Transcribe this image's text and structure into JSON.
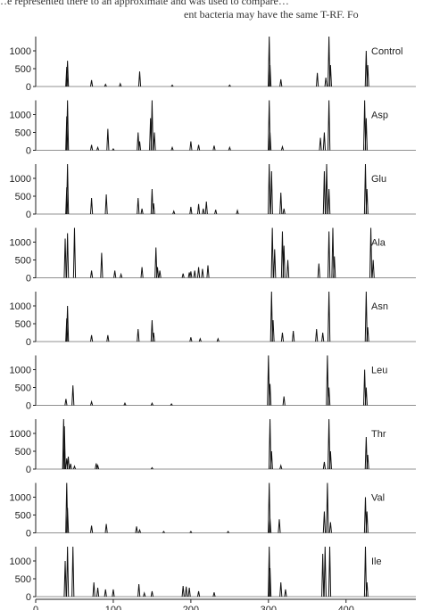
{
  "caption": {
    "line1": "…e represented there to an approximate and was used to compare…",
    "line2": "ent bacteria may have the same T-RF. Fo"
  },
  "chart_data": {
    "type": "line",
    "title": "",
    "xlabel": "",
    "ylabel": "",
    "xlim": [
      0,
      490
    ],
    "x_ticks": [
      0,
      100,
      200,
      300,
      400
    ],
    "y_ticks": [
      0,
      500,
      1000
    ],
    "ylim": [
      0,
      1400
    ],
    "panels": [
      {
        "name": "Control",
        "peaks": [
          [
            40,
            550
          ],
          [
            41,
            720
          ],
          [
            72,
            180
          ],
          [
            90,
            60
          ],
          [
            109,
            80
          ],
          [
            134,
            420
          ],
          [
            176,
            40
          ],
          [
            250,
            40
          ],
          [
            301,
            1400
          ],
          [
            302,
            600
          ],
          [
            316,
            200
          ],
          [
            363,
            380
          ],
          [
            374,
            250
          ],
          [
            378,
            1400
          ],
          [
            380,
            600
          ],
          [
            426,
            1000
          ],
          [
            428,
            600
          ]
        ]
      },
      {
        "name": "Asp",
        "peaks": [
          [
            40,
            950
          ],
          [
            41,
            1400
          ],
          [
            72,
            150
          ],
          [
            80,
            80
          ],
          [
            93,
            600
          ],
          [
            100,
            40
          ],
          [
            132,
            500
          ],
          [
            134,
            250
          ],
          [
            148,
            900
          ],
          [
            150,
            1400
          ],
          [
            153,
            500
          ],
          [
            176,
            80
          ],
          [
            200,
            250
          ],
          [
            210,
            150
          ],
          [
            230,
            130
          ],
          [
            250,
            80
          ],
          [
            301,
            1400
          ],
          [
            302,
            500
          ],
          [
            318,
            100
          ],
          [
            367,
            350
          ],
          [
            372,
            500
          ],
          [
            378,
            1400
          ],
          [
            424,
            1400
          ],
          [
            426,
            900
          ]
        ]
      },
      {
        "name": "Glu",
        "peaks": [
          [
            40,
            750
          ],
          [
            41,
            1400
          ],
          [
            72,
            450
          ],
          [
            91,
            550
          ],
          [
            132,
            450
          ],
          [
            137,
            150
          ],
          [
            150,
            700
          ],
          [
            152,
            300
          ],
          [
            178,
            80
          ],
          [
            200,
            200
          ],
          [
            210,
            280
          ],
          [
            216,
            150
          ],
          [
            220,
            350
          ],
          [
            232,
            120
          ],
          [
            260,
            100
          ],
          [
            301,
            1400
          ],
          [
            304,
            1200
          ],
          [
            316,
            600
          ],
          [
            320,
            150
          ],
          [
            372,
            1200
          ],
          [
            375,
            1400
          ],
          [
            378,
            700
          ],
          [
            425,
            1400
          ],
          [
            427,
            700
          ]
        ]
      },
      {
        "name": "Ala",
        "peaks": [
          [
            38,
            1100
          ],
          [
            41,
            1250
          ],
          [
            50,
            1400
          ],
          [
            72,
            200
          ],
          [
            85,
            700
          ],
          [
            102,
            200
          ],
          [
            110,
            100
          ],
          [
            137,
            300
          ],
          [
            155,
            850
          ],
          [
            157,
            300
          ],
          [
            160,
            200
          ],
          [
            190,
            120
          ],
          [
            198,
            150
          ],
          [
            200,
            180
          ],
          [
            205,
            200
          ],
          [
            210,
            300
          ],
          [
            215,
            250
          ],
          [
            222,
            350
          ],
          [
            305,
            1400
          ],
          [
            308,
            800
          ],
          [
            318,
            1300
          ],
          [
            320,
            900
          ],
          [
            325,
            500
          ],
          [
            365,
            400
          ],
          [
            378,
            1300
          ],
          [
            383,
            1400
          ],
          [
            385,
            600
          ],
          [
            432,
            1400
          ],
          [
            435,
            500
          ]
        ]
      },
      {
        "name": "Asn",
        "peaks": [
          [
            40,
            650
          ],
          [
            41,
            1000
          ],
          [
            72,
            180
          ],
          [
            93,
            180
          ],
          [
            132,
            350
          ],
          [
            150,
            600
          ],
          [
            152,
            250
          ],
          [
            200,
            120
          ],
          [
            212,
            80
          ],
          [
            235,
            80
          ],
          [
            304,
            1400
          ],
          [
            306,
            600
          ],
          [
            318,
            250
          ],
          [
            332,
            300
          ],
          [
            362,
            350
          ],
          [
            370,
            250
          ],
          [
            378,
            1400
          ],
          [
            426,
            1400
          ],
          [
            428,
            400
          ]
        ]
      },
      {
        "name": "Leu",
        "peaks": [
          [
            39,
            180
          ],
          [
            48,
            560
          ],
          [
            72,
            100
          ],
          [
            115,
            60
          ],
          [
            150,
            60
          ],
          [
            175,
            40
          ],
          [
            300,
            1400
          ],
          [
            302,
            600
          ],
          [
            320,
            250
          ],
          [
            376,
            1400
          ],
          [
            378,
            500
          ],
          [
            424,
            1000
          ],
          [
            426,
            500
          ]
        ]
      },
      {
        "name": "Thr",
        "peaks": [
          [
            36,
            1400
          ],
          [
            37,
            1200
          ],
          [
            40,
            300
          ],
          [
            42,
            350
          ],
          [
            45,
            150
          ],
          [
            50,
            80
          ],
          [
            78,
            160
          ],
          [
            80,
            100
          ],
          [
            150,
            40
          ],
          [
            302,
            1400
          ],
          [
            304,
            500
          ],
          [
            316,
            100
          ],
          [
            372,
            200
          ],
          [
            378,
            1400
          ],
          [
            380,
            500
          ],
          [
            426,
            900
          ],
          [
            428,
            400
          ]
        ]
      },
      {
        "name": "Val",
        "peaks": [
          [
            40,
            1400
          ],
          [
            41,
            700
          ],
          [
            72,
            200
          ],
          [
            91,
            250
          ],
          [
            130,
            180
          ],
          [
            134,
            80
          ],
          [
            165,
            40
          ],
          [
            200,
            40
          ],
          [
            248,
            40
          ],
          [
            301,
            1400
          ],
          [
            302,
            400
          ],
          [
            314,
            380
          ],
          [
            372,
            600
          ],
          [
            376,
            1400
          ],
          [
            380,
            300
          ],
          [
            425,
            1000
          ],
          [
            427,
            600
          ]
        ]
      },
      {
        "name": "Ile",
        "peaks": [
          [
            38,
            1000
          ],
          [
            41,
            1400
          ],
          [
            48,
            1400
          ],
          [
            75,
            400
          ],
          [
            80,
            250
          ],
          [
            90,
            200
          ],
          [
            100,
            200
          ],
          [
            133,
            350
          ],
          [
            140,
            100
          ],
          [
            150,
            150
          ],
          [
            190,
            300
          ],
          [
            194,
            280
          ],
          [
            198,
            250
          ],
          [
            210,
            150
          ],
          [
            230,
            120
          ],
          [
            301,
            1400
          ],
          [
            302,
            800
          ],
          [
            316,
            400
          ],
          [
            322,
            200
          ],
          [
            370,
            1200
          ],
          [
            373,
            1400
          ],
          [
            379,
            1400
          ],
          [
            425,
            1400
          ],
          [
            427,
            400
          ]
        ]
      }
    ]
  }
}
